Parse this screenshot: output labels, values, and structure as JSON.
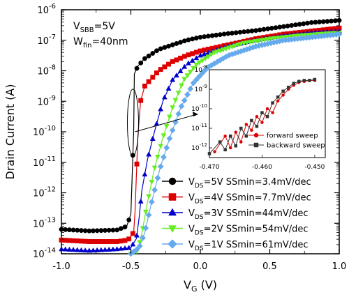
{
  "chart_data": {
    "type": "line",
    "xlabel_main": "V",
    "xlabel_sub": "G",
    "xlabel_unit": " (V)",
    "ylabel": "Drain Current (A)",
    "xlim": [
      -1.0,
      1.0
    ],
    "ylim_exp": [
      -14,
      -6
    ],
    "log_y": true,
    "x_ticks": [
      "-1.0",
      "-0.5",
      "0.0",
      "0.5",
      "1.0"
    ],
    "x_tick_values": [
      -1.0,
      -0.5,
      0.0,
      0.5,
      1.0
    ],
    "annotations": [
      {
        "main": "V",
        "sub": "SBB",
        "rest": "=5V"
      },
      {
        "main": "W",
        "sub": "fin",
        "rest": "=40nm"
      }
    ],
    "series": [
      {
        "name_main": "V",
        "name_sub": "DS",
        "name_rest": "=5V  SSmin=3.4mV/dec",
        "color": "#000000",
        "marker": "circle",
        "points": [
          [
            -1.0,
            -13.2
          ],
          [
            -0.8,
            -13.25
          ],
          [
            -0.6,
            -13.22
          ],
          [
            -0.53,
            -13.1
          ],
          [
            -0.5,
            -12.7
          ],
          [
            -0.48,
            -10.0
          ],
          [
            -0.475,
            -8.1
          ],
          [
            -0.45,
            -7.85
          ],
          [
            -0.4,
            -7.6
          ],
          [
            -0.3,
            -7.3
          ],
          [
            -0.2,
            -7.15
          ],
          [
            -0.1,
            -7.0
          ],
          [
            0.0,
            -6.9
          ],
          [
            0.2,
            -6.78
          ],
          [
            0.4,
            -6.68
          ],
          [
            0.6,
            -6.55
          ],
          [
            0.8,
            -6.42
          ],
          [
            1.0,
            -6.35
          ]
        ]
      },
      {
        "name_main": "V",
        "name_sub": "DS",
        "name_rest": "=4V  SSmin=7.7mV/dec",
        "color": "#dd0000",
        "marker": "square",
        "points": [
          [
            -1.0,
            -13.55
          ],
          [
            -0.8,
            -13.6
          ],
          [
            -0.6,
            -13.6
          ],
          [
            -0.52,
            -13.55
          ],
          [
            -0.48,
            -13.3
          ],
          [
            -0.47,
            -12.6
          ],
          [
            -0.45,
            -10.2
          ],
          [
            -0.43,
            -9.0
          ],
          [
            -0.4,
            -8.5
          ],
          [
            -0.3,
            -8.0
          ],
          [
            -0.2,
            -7.7
          ],
          [
            -0.1,
            -7.5
          ],
          [
            0.0,
            -7.35
          ],
          [
            0.2,
            -7.15
          ],
          [
            0.4,
            -6.95
          ],
          [
            0.6,
            -6.8
          ],
          [
            0.8,
            -6.7
          ],
          [
            1.0,
            -6.6
          ]
        ]
      },
      {
        "name_main": "V",
        "name_sub": "DS",
        "name_rest": "=3V  SSmin=44mV/dec",
        "color": "#0000cc",
        "marker": "triangle",
        "points": [
          [
            -1.0,
            -13.85
          ],
          [
            -0.8,
            -13.9
          ],
          [
            -0.6,
            -13.85
          ],
          [
            -0.5,
            -13.8
          ],
          [
            -0.46,
            -13.5
          ],
          [
            -0.44,
            -12.8
          ],
          [
            -0.42,
            -11.9
          ],
          [
            -0.38,
            -10.9
          ],
          [
            -0.33,
            -10.0
          ],
          [
            -0.27,
            -9.0
          ],
          [
            -0.2,
            -8.3
          ],
          [
            -0.1,
            -7.8
          ],
          [
            0.0,
            -7.5
          ],
          [
            0.2,
            -7.2
          ],
          [
            0.4,
            -7.0
          ],
          [
            0.6,
            -6.85
          ],
          [
            0.8,
            -6.75
          ],
          [
            1.0,
            -6.7
          ]
        ]
      },
      {
        "name_main": "V",
        "name_sub": "DS",
        "name_rest": "=2V  SSmin=54mV/dec",
        "color": "#66ee22",
        "marker": "triangle-down",
        "points": [
          [
            -0.5,
            -14.0
          ],
          [
            -0.45,
            -13.9
          ],
          [
            -0.42,
            -13.3
          ],
          [
            -0.38,
            -12.3
          ],
          [
            -0.33,
            -11.2
          ],
          [
            -0.27,
            -10.2
          ],
          [
            -0.2,
            -9.2
          ],
          [
            -0.12,
            -8.3
          ],
          [
            -0.03,
            -7.8
          ],
          [
            0.1,
            -7.4
          ],
          [
            0.3,
            -7.1
          ],
          [
            0.5,
            -6.95
          ],
          [
            0.7,
            -6.85
          ],
          [
            0.9,
            -6.78
          ],
          [
            1.0,
            -6.75
          ]
        ]
      },
      {
        "name_main": "V",
        "name_sub": "DS",
        "name_rest": "=1V  SSmin=61mV/dec",
        "color": "#66aaee",
        "marker": "diamond",
        "points": [
          [
            -0.5,
            -14.0
          ],
          [
            -0.44,
            -13.8
          ],
          [
            -0.4,
            -13.3
          ],
          [
            -0.35,
            -12.3
          ],
          [
            -0.29,
            -11.2
          ],
          [
            -0.22,
            -10.2
          ],
          [
            -0.14,
            -9.2
          ],
          [
            -0.05,
            -8.4
          ],
          [
            0.05,
            -7.9
          ],
          [
            0.2,
            -7.5
          ],
          [
            0.4,
            -7.2
          ],
          [
            0.6,
            -7.0
          ],
          [
            0.8,
            -6.9
          ],
          [
            1.0,
            -6.8
          ]
        ]
      }
    ],
    "inset": {
      "xlim": [
        -0.47,
        -0.448
      ],
      "ylim_exp": [
        -12.5,
        -8
      ],
      "x_ticks": [
        "-0.470",
        "-0.460",
        "-0.450"
      ],
      "x_tick_values": [
        -0.47,
        -0.46,
        -0.45
      ],
      "y_tick_values": [
        -12,
        -11,
        -10,
        -9,
        -8
      ],
      "series": [
        {
          "name": "forward sweep",
          "color": "#dd0000",
          "marker": "circle",
          "points": [
            [
              -0.469,
              -12.2
            ],
            [
              -0.467,
              -11.4
            ],
            [
              -0.466,
              -12.0
            ],
            [
              -0.465,
              -11.2
            ],
            [
              -0.464,
              -11.7
            ],
            [
              -0.463,
              -10.8
            ],
            [
              -0.462,
              -11.1
            ],
            [
              -0.461,
              -10.4
            ],
            [
              -0.46,
              -10.7
            ],
            [
              -0.459,
              -10.0
            ],
            [
              -0.458,
              -10.2
            ],
            [
              -0.457,
              -9.6
            ],
            [
              -0.456,
              -9.3
            ],
            [
              -0.455,
              -9.0
            ],
            [
              -0.454,
              -8.8
            ],
            [
              -0.453,
              -8.65
            ],
            [
              -0.452,
              -8.6
            ],
            [
              -0.451,
              -8.55
            ],
            [
              -0.45,
              -8.55
            ]
          ]
        },
        {
          "name": "backward sweep",
          "color": "#333333",
          "marker": "square",
          "points": [
            [
              -0.47,
              -12.3
            ],
            [
              -0.468,
              -11.7
            ],
            [
              -0.467,
              -12.1
            ],
            [
              -0.466,
              -11.4
            ],
            [
              -0.465,
              -11.9
            ],
            [
              -0.464,
              -11.0
            ],
            [
              -0.463,
              -11.4
            ],
            [
              -0.462,
              -10.6
            ],
            [
              -0.461,
              -10.9
            ],
            [
              -0.46,
              -10.2
            ],
            [
              -0.459,
              -10.4
            ],
            [
              -0.458,
              -9.7
            ],
            [
              -0.457,
              -9.4
            ],
            [
              -0.456,
              -9.1
            ],
            [
              -0.455,
              -8.9
            ],
            [
              -0.454,
              -8.7
            ],
            [
              -0.453,
              -8.6
            ],
            [
              -0.452,
              -8.55
            ],
            [
              -0.451,
              -8.55
            ],
            [
              -0.45,
              -8.5
            ]
          ]
        }
      ]
    }
  }
}
